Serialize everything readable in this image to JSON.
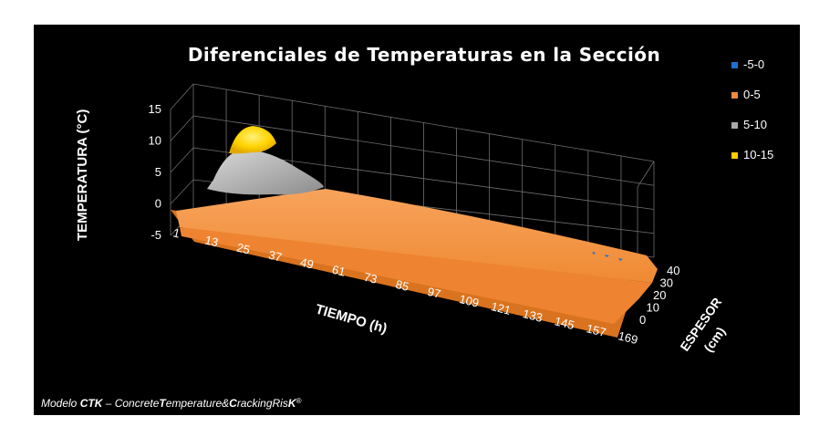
{
  "chart_data": {
    "type": "surface",
    "title": "Diferenciales de Temperaturas en la Sección",
    "zlabel": "TEMPERATURA (°C)",
    "xlabel": "TIEMPO (h)",
    "ylabel_line1": "ESPESOR",
    "ylabel_line2": "(cm)",
    "z_ticks": [
      "15",
      "10",
      "5",
      "0",
      "-5"
    ],
    "zlim": [
      -5,
      15
    ],
    "x_ticks": [
      "1",
      "13",
      "25",
      "37",
      "49",
      "61",
      "73",
      "85",
      "97",
      "109",
      "121",
      "133",
      "145",
      "157",
      "169"
    ],
    "y_ticks": [
      "0",
      "10",
      "20",
      "30",
      "40"
    ],
    "legend": [
      {
        "label": "-5-0",
        "color": "#1f6fd0"
      },
      {
        "label": "0-5",
        "color": "#f2883a"
      },
      {
        "label": "5-10",
        "color": "#a8a8a8"
      },
      {
        "label": "10-15",
        "color": "#ffcc00"
      }
    ],
    "peak": {
      "time_h": 13,
      "espesor_cm": 20,
      "temperature_c": 14
    },
    "legend_position": "right",
    "grid": true
  },
  "footer": {
    "prefix": "Modelo ",
    "ctk": "CTK",
    "dash": " – ",
    "concrete": "Concrete",
    "t": "T",
    "emperature": "emperature&",
    "c": "C",
    "racking": "racking",
    "ris": "Ris",
    "k": "K",
    "reg": "®"
  }
}
